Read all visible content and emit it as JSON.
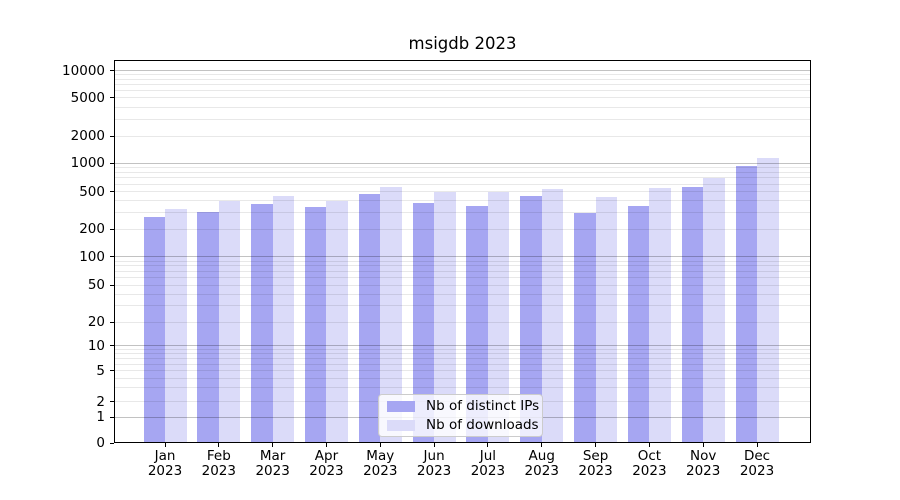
{
  "title": "msigdb 2023",
  "legend": {
    "items": [
      {
        "label": "Nb of distinct IPs",
        "color": "#a6a6f2"
      },
      {
        "label": "Nb of downloads",
        "color": "#dbdbf9"
      }
    ]
  },
  "chart_data": {
    "type": "bar",
    "title": "msigdb 2023",
    "categories": [
      "Jan 2023",
      "Feb 2023",
      "Mar 2023",
      "Apr 2023",
      "May 2023",
      "Jun 2023",
      "Jul 2023",
      "Aug 2023",
      "Sep 2023",
      "Oct 2023",
      "Nov 2023",
      "Dec 2023"
    ],
    "series": [
      {
        "name": "Nb of distinct IPs",
        "color": "#a6a6f2",
        "values": [
          270,
          305,
          370,
          340,
          470,
          380,
          355,
          450,
          300,
          355,
          560,
          935
        ]
      },
      {
        "name": "Nb of downloads",
        "color": "#dbdbf9",
        "values": [
          330,
          400,
          445,
          400,
          555,
          500,
          490,
          535,
          435,
          550,
          700,
          1135
        ]
      }
    ],
    "xlabel": "",
    "ylabel": "",
    "y_scale": "symlog",
    "y_ticks": [
      0,
      1,
      2,
      5,
      10,
      20,
      50,
      100,
      200,
      500,
      1000,
      2000,
      5000,
      10000
    ],
    "ylim": [
      0,
      14000
    ],
    "grid": true,
    "legend_position": "lower center"
  }
}
